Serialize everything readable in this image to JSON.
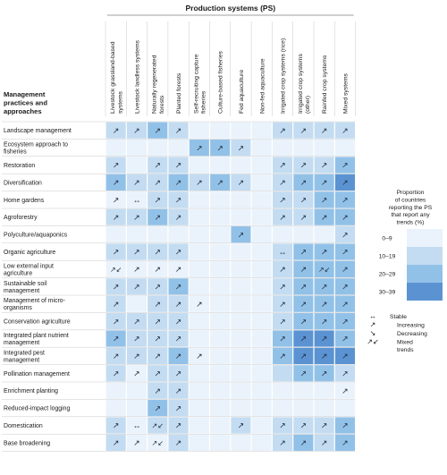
{
  "chart_data": {
    "type": "heatmap",
    "title": "Production systems (PS)",
    "row_header": [
      "Management",
      "practices and",
      "approaches"
    ],
    "columns": [
      [
        "Livestock grassland-based",
        "systems"
      ],
      [
        "Livestock landless systems"
      ],
      [
        "Naturally regenerated",
        "forests"
      ],
      [
        "Planted forests"
      ],
      [
        "Self-recruiting capture",
        "fisheries"
      ],
      [
        "Culture-based fisheries"
      ],
      [
        "Fed aquaculture"
      ],
      [
        "Non-fed aquaculture"
      ],
      [
        "Irrigated crop systems (rice)"
      ],
      [
        "Irrigated crop systems",
        "(other)"
      ],
      [
        "Rainfed crop systems"
      ],
      [
        "Mixed systems"
      ]
    ],
    "rows": [
      {
        "label": [
          "Landscape management"
        ],
        "levels": [
          1,
          1,
          2,
          1,
          0,
          0,
          0,
          0,
          1,
          1,
          1,
          1
        ],
        "symbols": [
          "↗",
          "↗",
          "↗",
          "↗",
          "",
          "",
          "",
          "",
          "↗",
          "↗",
          "↗",
          "↗"
        ]
      },
      {
        "label": [
          "Ecosystem approach to",
          "fisheries"
        ],
        "levels": [
          0,
          0,
          0,
          0,
          2,
          2,
          1,
          0,
          0,
          0,
          0,
          0
        ],
        "symbols": [
          "",
          "",
          "",
          "",
          "↗",
          "↗",
          "↗",
          "",
          "",
          "",
          "",
          ""
        ]
      },
      {
        "label": [
          "Restoration"
        ],
        "levels": [
          1,
          0,
          1,
          1,
          0,
          0,
          0,
          0,
          1,
          1,
          1,
          2
        ],
        "symbols": [
          "↗",
          "",
          "↗",
          "↗",
          "",
          "",
          "",
          "",
          "↗",
          "↗",
          "↗",
          "↗"
        ]
      },
      {
        "label": [
          "Diversification"
        ],
        "levels": [
          2,
          1,
          1,
          2,
          1,
          2,
          1,
          0,
          1,
          2,
          2,
          3
        ],
        "symbols": [
          "↗",
          "↗",
          "↗",
          "↗",
          "↗",
          "↗",
          "↗",
          "",
          "↗",
          "↗",
          "↗",
          "↗"
        ]
      },
      {
        "label": [
          "Home gardens"
        ],
        "levels": [
          0,
          0,
          1,
          1,
          0,
          0,
          0,
          0,
          1,
          1,
          2,
          2
        ],
        "symbols": [
          "↗",
          "↔",
          "↗",
          "↗",
          "",
          "",
          "",
          "",
          "↗",
          "↗",
          "↗",
          "↗"
        ]
      },
      {
        "label": [
          "Agroforestry"
        ],
        "levels": [
          1,
          1,
          2,
          1,
          0,
          0,
          0,
          0,
          1,
          1,
          2,
          2
        ],
        "symbols": [
          "↗",
          "↗",
          "↗",
          "↗",
          "",
          "",
          "",
          "",
          "↗",
          "↗",
          "↗",
          "↗"
        ]
      },
      {
        "label": [
          "Polyculture/aquaponics"
        ],
        "levels": [
          0,
          0,
          0,
          0,
          0,
          0,
          2,
          0,
          0,
          0,
          0,
          1
        ],
        "symbols": [
          "",
          "",
          "",
          "",
          "",
          "",
          "↗",
          "",
          "",
          "",
          "",
          "↗"
        ]
      },
      {
        "label": [
          "Organic agriculture"
        ],
        "levels": [
          1,
          1,
          1,
          1,
          0,
          0,
          0,
          0,
          1,
          2,
          2,
          2
        ],
        "symbols": [
          "↗",
          "↗",
          "↗",
          "↗",
          "",
          "",
          "",
          "",
          "↔",
          "↗",
          "↗",
          "↗"
        ]
      },
      {
        "label": [
          "Low external input",
          "agriculture"
        ],
        "levels": [
          0,
          0,
          0,
          0,
          0,
          0,
          0,
          0,
          1,
          2,
          2,
          2
        ],
        "symbols": [
          "↗↙",
          "↗",
          "↗",
          "↗",
          "",
          "",
          "",
          "",
          "↗",
          "↗",
          "↗↙",
          "↗"
        ]
      },
      {
        "label": [
          "Sustainable soil",
          "management"
        ],
        "levels": [
          1,
          1,
          1,
          2,
          0,
          0,
          0,
          0,
          1,
          2,
          2,
          2
        ],
        "symbols": [
          "↗",
          "↗",
          "↗",
          "↗",
          "",
          "",
          "",
          "",
          "↗",
          "↗",
          "↗",
          "↗"
        ]
      },
      {
        "label": [
          "Management of micro-",
          "organisms"
        ],
        "levels": [
          1,
          0,
          1,
          1,
          0,
          0,
          0,
          0,
          1,
          2,
          2,
          2
        ],
        "symbols": [
          "↗",
          "",
          "↗",
          "↗",
          "↗",
          "",
          "",
          "",
          "↗",
          "↗",
          "↗",
          "↗"
        ]
      },
      {
        "label": [
          "Conservation agriculture"
        ],
        "levels": [
          1,
          1,
          1,
          1,
          0,
          0,
          0,
          0,
          1,
          2,
          2,
          2
        ],
        "symbols": [
          "↗",
          "↗",
          "↗",
          "↗",
          "",
          "",
          "",
          "",
          "↗",
          "↗",
          "↗",
          "↗"
        ]
      },
      {
        "label": [
          "Integrated plant nutrient",
          "management"
        ],
        "levels": [
          2,
          1,
          1,
          1,
          0,
          0,
          0,
          0,
          2,
          3,
          3,
          2
        ],
        "symbols": [
          "↗",
          "↗",
          "↗",
          "↗",
          "",
          "",
          "",
          "",
          "↗",
          "↗",
          "↗",
          "↗"
        ]
      },
      {
        "label": [
          "Integrated pest",
          "management"
        ],
        "levels": [
          1,
          1,
          1,
          2,
          0,
          0,
          0,
          0,
          2,
          3,
          3,
          3
        ],
        "symbols": [
          "↗",
          "↗",
          "↗",
          "↗",
          "↗",
          "",
          "",
          "",
          "↗",
          "↗",
          "↗",
          "↗"
        ]
      },
      {
        "label": [
          "Pollination management"
        ],
        "levels": [
          1,
          0,
          1,
          1,
          0,
          0,
          0,
          0,
          1,
          2,
          2,
          1
        ],
        "symbols": [
          "↗",
          "↗",
          "↗",
          "↗",
          "",
          "",
          "",
          "",
          "",
          "↗",
          "↗",
          "↗"
        ]
      },
      {
        "label": [
          "Enrichment planting"
        ],
        "levels": [
          0,
          0,
          1,
          1,
          0,
          0,
          0,
          0,
          0,
          0,
          0,
          0
        ],
        "symbols": [
          "",
          "",
          "↗",
          "↗",
          "",
          "",
          "",
          "",
          "",
          "",
          "",
          "↗"
        ]
      },
      {
        "label": [
          "Reduced-impact logging"
        ],
        "levels": [
          0,
          0,
          2,
          1,
          0,
          0,
          0,
          0,
          0,
          0,
          0,
          0
        ],
        "symbols": [
          "",
          "",
          "↗",
          "↗",
          "",
          "",
          "",
          "",
          "",
          "",
          "",
          ""
        ]
      },
      {
        "label": [
          "Domestication"
        ],
        "levels": [
          1,
          0,
          1,
          1,
          0,
          0,
          1,
          0,
          1,
          1,
          1,
          2
        ],
        "symbols": [
          "↗",
          "↔",
          "↗↙",
          "↗",
          "",
          "",
          "↗",
          "",
          "↗",
          "↗",
          "↗",
          "↗"
        ]
      },
      {
        "label": [
          "Base broadening"
        ],
        "levels": [
          1,
          0,
          0,
          1,
          0,
          0,
          0,
          0,
          1,
          2,
          1,
          2
        ],
        "symbols": [
          "↗",
          "↗",
          "↗↙",
          "↗",
          "",
          "",
          "",
          "",
          "↗",
          "↗",
          "↗",
          "↗"
        ]
      }
    ],
    "scale": {
      "title": [
        "Proportion",
        "of countries",
        "reporting the PS",
        "that report any",
        "trends (%)"
      ],
      "levels": [
        "0–9",
        "10–19",
        "20–29",
        "30–39"
      ],
      "colors": [
        "#eaf3fb",
        "#c3dcf1",
        "#92c1e8",
        "#5b93d2"
      ]
    },
    "symbol_key": [
      {
        "symbol": "↔",
        "label": [
          "Stable"
        ]
      },
      {
        "symbol": "↗",
        "label": [
          "Increasing"
        ]
      },
      {
        "symbol": "↘",
        "label": [
          "Decreasing"
        ]
      },
      {
        "symbol": "↗↙",
        "label": [
          "Mixed",
          "trends"
        ]
      }
    ]
  }
}
